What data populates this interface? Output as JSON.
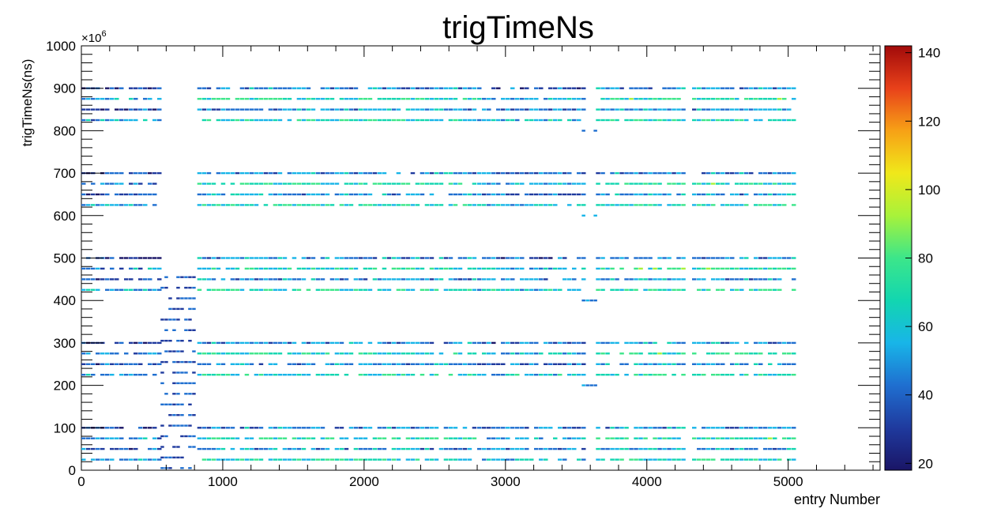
{
  "chart_data": {
    "type": "heatmap",
    "title": "trigTimeNs",
    "xlabel": "entry Number",
    "ylabel": "trigTimeNs(ns)",
    "y_exponent_label": "×10",
    "y_exponent_power": "6",
    "xlim": [
      0,
      5650
    ],
    "ylim": [
      0,
      1000
    ],
    "x_ticks": [
      0,
      1000,
      2000,
      3000,
      4000,
      5000
    ],
    "x_tick_labels": [
      "0",
      "1000",
      "2000",
      "3000",
      "4000",
      "5000"
    ],
    "y_ticks": [
      0,
      100,
      200,
      300,
      400,
      500,
      600,
      700,
      800,
      900,
      1000
    ],
    "y_tick_labels": [
      "0",
      "100",
      "200",
      "300",
      "400",
      "500",
      "600",
      "700",
      "800",
      "900",
      "1000"
    ],
    "colorbar": {
      "range": [
        18,
        142
      ],
      "ticks": [
        20,
        40,
        60,
        80,
        100,
        120,
        140
      ],
      "tick_labels": [
        "20",
        "40",
        "60",
        "80",
        "100",
        "120",
        "140"
      ],
      "palette": [
        "#1a1566",
        "#1f3a9e",
        "#1f6fd0",
        "#18b5e8",
        "#12d6b0",
        "#3ce68a",
        "#a8f23a",
        "#f0e81a",
        "#f7a116",
        "#e8411a",
        "#a10a0a"
      ]
    },
    "band_offsets": [
      0,
      25,
      50,
      75
    ],
    "band_periods": [
      25,
      225,
      425,
      625,
      825
    ],
    "band_values": [
      55,
      40,
      50,
      38
    ],
    "entry_segments": [
      {
        "x": [
          0,
          560
        ],
        "value": 45
      },
      {
        "x": [
          820,
          2780
        ],
        "value": 70
      },
      {
        "x": [
          2800,
          3540
        ],
        "value": 55
      },
      {
        "x": [
          3640,
          4260
        ],
        "value": 75
      },
      {
        "x": [
          4320,
          5030
        ],
        "value": 72
      }
    ],
    "isolated_bands": [
      {
        "x": [
          560,
          800
        ],
        "y": [
          5,
          470
        ],
        "value": 40
      },
      {
        "x": [
          3540,
          3640
        ],
        "y": [
          200,
          200
        ],
        "value": 50
      },
      {
        "x": [
          3540,
          3640
        ],
        "y": [
          400,
          400
        ],
        "value": 50
      },
      {
        "x": [
          3540,
          3640
        ],
        "y": [
          600,
          600
        ],
        "value": 50
      },
      {
        "x": [
          3540,
          3640
        ],
        "y": [
          800,
          800
        ],
        "value": 50
      }
    ]
  }
}
